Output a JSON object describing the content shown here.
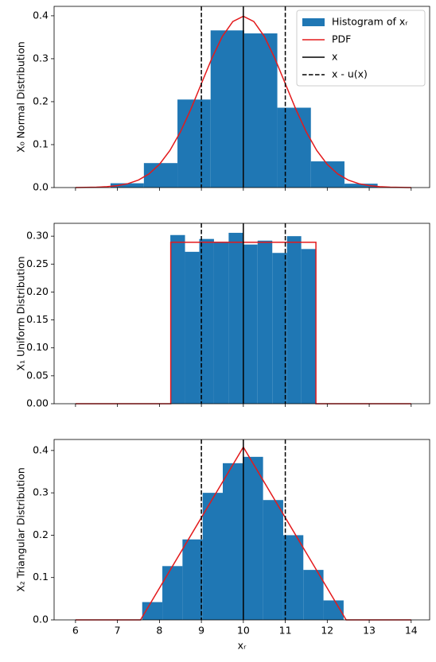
{
  "chart_data": [
    {
      "type": "histogram",
      "ylabel": "X₀ Normal Distribution",
      "name": "Histogram of xᵣ",
      "color": "#1f77b4",
      "bins": [
        6.834,
        7.63,
        8.43,
        9.22,
        10.02,
        10.81,
        11.61,
        12.41,
        13.2
      ],
      "values": [
        0.01,
        0.057,
        0.205,
        0.366,
        0.359,
        0.186,
        0.061,
        0.009
      ],
      "pdf": {
        "name": "PDF",
        "color": "#e31a1c",
        "x": [
          6,
          6.25,
          6.5,
          6.75,
          7,
          7.25,
          7.5,
          7.75,
          8,
          8.25,
          8.5,
          8.75,
          9,
          9.25,
          9.5,
          9.75,
          10,
          10.25,
          10.5,
          10.75,
          11,
          11.25,
          11.5,
          11.75,
          12,
          12.25,
          12.5,
          12.75,
          13,
          13.25,
          13.5,
          13.75,
          14
        ],
        "y": [
          0.0001,
          0.0004,
          0.0009,
          0.002,
          0.0044,
          0.0091,
          0.0175,
          0.0317,
          0.054,
          0.0863,
          0.1295,
          0.1826,
          0.242,
          0.3011,
          0.3521,
          0.3867,
          0.3989,
          0.3867,
          0.3521,
          0.3011,
          0.242,
          0.1826,
          0.1295,
          0.0863,
          0.054,
          0.0317,
          0.0175,
          0.0091,
          0.0044,
          0.002,
          0.0009,
          0.0004,
          0.0001
        ]
      },
      "vlines": [
        {
          "name": "x",
          "x": 10,
          "color": "#000000",
          "linestyle": "solid"
        },
        {
          "name": "x - u(x)",
          "x": 9,
          "color": "#000000",
          "linestyle": "dashed"
        },
        {
          "x": 11,
          "color": "#000000",
          "linestyle": "dashed"
        }
      ],
      "legend": "upper right",
      "xlim": [
        5.49,
        14.44
      ],
      "ylim": [
        0,
        0.422
      ],
      "yticks": [
        {
          "value": 0,
          "label": "0.0"
        },
        0.1,
        0.2,
        0.3,
        0.4
      ]
    },
    {
      "type": "histogram",
      "ylabel": "X₁ Uniform Distribution",
      "color": "#1f77b4",
      "bins": [
        8.26,
        8.61,
        8.95,
        9.3,
        9.65,
        9.99,
        10.34,
        10.69,
        11.04,
        11.38,
        11.73
      ],
      "values": [
        0.302,
        0.272,
        0.295,
        0.29,
        0.306,
        0.285,
        0.292,
        0.27,
        0.3,
        0.277
      ],
      "pdf": {
        "color": "#e31a1c",
        "x": [
          6,
          8.27,
          8.27,
          11.73,
          11.73,
          14
        ],
        "y": [
          0,
          0,
          0.289,
          0.289,
          0,
          0
        ]
      },
      "vlines": [
        {
          "x": 10,
          "color": "#000000",
          "linestyle": "solid"
        },
        {
          "x": 9,
          "color": "#000000",
          "linestyle": "dashed"
        },
        {
          "x": 11,
          "color": "#000000",
          "linestyle": "dashed"
        }
      ],
      "xlim": [
        5.49,
        14.44
      ],
      "ylim": [
        0,
        0.323
      ],
      "yticks": [
        {
          "value": 0,
          "label": "0.00"
        },
        0.05,
        {
          "value": 0.1,
          "label": "0.10"
        },
        0.15,
        {
          "value": 0.2,
          "label": "0.20"
        },
        0.25,
        {
          "value": 0.3,
          "label": "0.30"
        }
      ]
    },
    {
      "type": "histogram",
      "ylabel": "X₂ Triangular Distribution",
      "xlabel": "xᵣ",
      "color": "#1f77b4",
      "bins": [
        7.59,
        8.07,
        8.55,
        9.03,
        9.51,
        9.99,
        10.47,
        10.95,
        11.43,
        11.91,
        12.39
      ],
      "values": [
        0.042,
        0.127,
        0.19,
        0.3,
        0.37,
        0.385,
        0.283,
        0.2,
        0.118,
        0.046
      ],
      "pdf": {
        "color": "#e31a1c",
        "x": [
          6,
          7.55,
          10,
          12.45,
          14
        ],
        "y": [
          0,
          0,
          0.408,
          0,
          0
        ]
      },
      "vlines": [
        {
          "x": 10,
          "color": "#000000",
          "linestyle": "solid"
        },
        {
          "x": 9,
          "color": "#000000",
          "linestyle": "dashed"
        },
        {
          "x": 11,
          "color": "#000000",
          "linestyle": "dashed"
        }
      ],
      "xlim": [
        5.49,
        14.44
      ],
      "ylim": [
        0,
        0.426
      ],
      "xticks": [
        6,
        7,
        8,
        9,
        10,
        11,
        12,
        13,
        14
      ],
      "yticks": [
        {
          "value": 0,
          "label": "0.0"
        },
        0.1,
        0.2,
        0.3,
        0.4
      ]
    }
  ]
}
